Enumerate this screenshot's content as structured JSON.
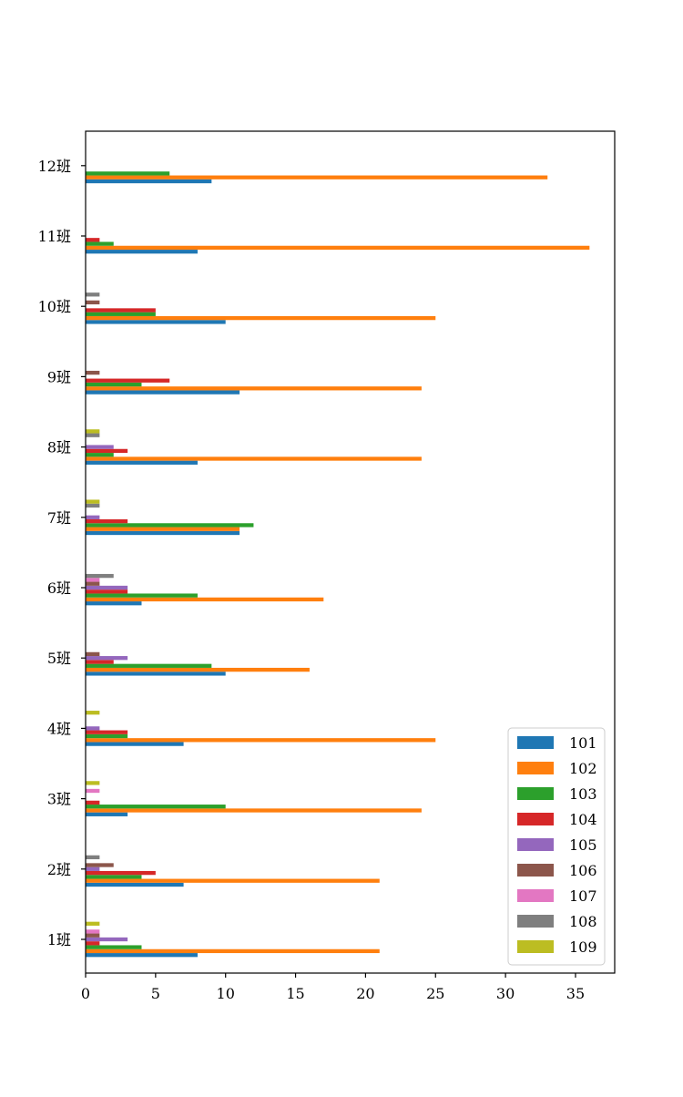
{
  "chart_data": {
    "type": "bar",
    "orientation": "horizontal",
    "categories": [
      "1班",
      "2班",
      "3班",
      "4班",
      "5班",
      "6班",
      "7班",
      "8班",
      "9班",
      "10班",
      "11班",
      "12班"
    ],
    "series": [
      {
        "name": "101",
        "color": "#1f77b4",
        "values": [
          8,
          7,
          3,
          7,
          10,
          4,
          11,
          8,
          11,
          10,
          8,
          9
        ]
      },
      {
        "name": "102",
        "color": "#ff7f0e",
        "values": [
          21,
          21,
          24,
          25,
          16,
          17,
          11,
          24,
          24,
          25,
          36,
          33
        ]
      },
      {
        "name": "103",
        "color": "#2ca02c",
        "values": [
          4,
          4,
          10,
          3,
          9,
          8,
          12,
          2,
          4,
          5,
          2,
          6
        ]
      },
      {
        "name": "104",
        "color": "#d62728",
        "values": [
          1,
          5,
          1,
          3,
          2,
          3,
          3,
          3,
          6,
          5,
          1,
          0
        ]
      },
      {
        "name": "105",
        "color": "#9467bd",
        "values": [
          3,
          1,
          0,
          1,
          3,
          3,
          1,
          2,
          0,
          0,
          0,
          0
        ]
      },
      {
        "name": "106",
        "color": "#8c564b",
        "values": [
          1,
          2,
          0,
          0,
          1,
          1,
          0,
          0,
          1,
          1,
          0,
          0
        ]
      },
      {
        "name": "107",
        "color": "#e377c2",
        "values": [
          1,
          0,
          1,
          0,
          0,
          1,
          0,
          0,
          0,
          0,
          0,
          0
        ]
      },
      {
        "name": "108",
        "color": "#7f7f7f",
        "values": [
          0,
          1,
          0,
          0,
          0,
          2,
          1,
          1,
          0,
          1,
          0,
          0
        ]
      },
      {
        "name": "109",
        "color": "#bcbd22",
        "values": [
          1,
          0,
          1,
          1,
          0,
          0,
          1,
          1,
          0,
          0,
          0,
          0
        ]
      }
    ],
    "xlim": [
      0,
      37.8
    ],
    "xticks": [
      0,
      5,
      10,
      15,
      20,
      25,
      30,
      35
    ],
    "title": "",
    "xlabel": "",
    "ylabel": "",
    "grid": false,
    "legend": "lower-right"
  }
}
